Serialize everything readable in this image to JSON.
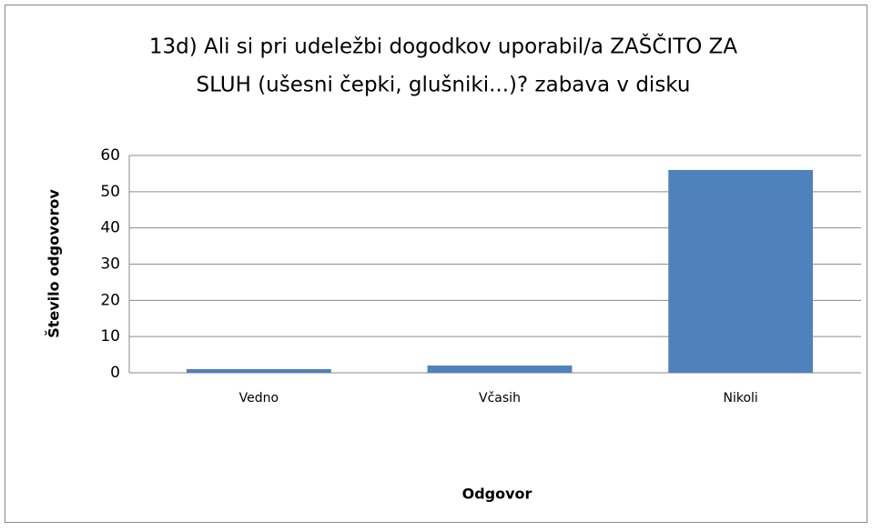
{
  "chart_data": {
    "type": "bar",
    "title": [
      "13d) Ali si pri udeležbi dogodkov uporabil/a ZAŠČITO ZA",
      "SLUH (ušesni čepki, glušniki...)? zabava v disku"
    ],
    "x_label": "Odgovor",
    "y_label": "Število odgovorov",
    "categories": [
      "Vedno",
      "Včasih",
      "Nikoli"
    ],
    "values": [
      1,
      2,
      56
    ],
    "color": "#4f81bd",
    "ylim": [
      0,
      60
    ],
    "yticks": [
      0,
      10,
      20,
      30,
      40,
      50,
      60
    ],
    "grid": true
  }
}
